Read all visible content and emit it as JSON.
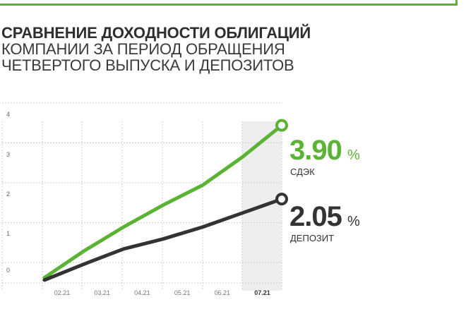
{
  "title": {
    "line1": "СРАВНЕНИЕ ДОХОДНОСТИ ОБЛИГАЦИЙ",
    "line2": "КОМПАНИИ ЗА ПЕРИОД ОБРАЩЕНИЯ",
    "line3": "ЧЕТВЕРТОГО ВЫПУСКА И ДЕПОЗИТОВ"
  },
  "chart_data": {
    "type": "line",
    "x": [
      1.0,
      2.0,
      3.0,
      4.0,
      5.0,
      6.0,
      7.0
    ],
    "categories": [
      "02.21",
      "03.21",
      "04.21",
      "05.21",
      "06.21",
      "07.21"
    ],
    "highlighted_category": "07.21",
    "ylim": [
      0,
      4
    ],
    "yticks": [
      "0",
      "1",
      "2",
      "3",
      "4"
    ],
    "grid": true,
    "series": [
      {
        "name": "СДЭК",
        "color": "#5bb335",
        "values": [
          0.08,
          0.75,
          1.35,
          1.9,
          2.4,
          3.1,
          3.9
        ]
      },
      {
        "name": "ДЕПОЗИТ",
        "color": "#333333",
        "values": [
          0.02,
          0.42,
          0.8,
          1.05,
          1.35,
          1.7,
          2.05
        ]
      }
    ],
    "end_labels": [
      {
        "value": "3.90",
        "unit": "%",
        "name": "СДЭК",
        "color": "#5bb335"
      },
      {
        "value": "2.05",
        "unit": "%",
        "name": "ДЕПОЗИТ",
        "color": "#333333"
      }
    ]
  }
}
